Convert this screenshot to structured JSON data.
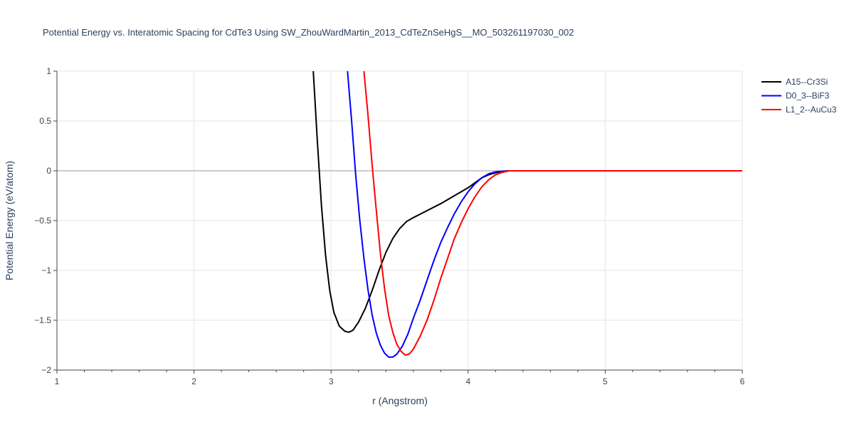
{
  "chart_data": {
    "type": "line",
    "title": "Potential Energy vs. Interatomic Spacing for CdTe3 Using SW_ZhouWardMartin_2013_CdTeZnSeHgS__MO_503261197030_002",
    "xlabel": "r (Angstrom)",
    "ylabel": "Potential Energy (eV/atom)",
    "xlim": [
      1,
      6
    ],
    "ylim": [
      -2,
      1
    ],
    "x_ticks": [
      1,
      2,
      3,
      4,
      5,
      6
    ],
    "x_tick_labels": [
      "1",
      "2",
      "3",
      "4",
      "5",
      "6"
    ],
    "y_ticks": [
      1,
      0.5,
      0,
      -0.5,
      -1,
      -1.5,
      -2
    ],
    "y_tick_labels": [
      "1",
      "0.5",
      "0",
      "−0.5",
      "−1",
      "−1.5",
      "−2"
    ],
    "grid": true,
    "legend_position": "top-right",
    "series": [
      {
        "name": "A15--Cr3Si",
        "color": "#000000",
        "points": [
          [
            2.87,
            1.0
          ],
          [
            2.9,
            0.3
          ],
          [
            2.93,
            -0.35
          ],
          [
            2.96,
            -0.85
          ],
          [
            2.99,
            -1.2
          ],
          [
            3.02,
            -1.42
          ],
          [
            3.06,
            -1.56
          ],
          [
            3.1,
            -1.61
          ],
          [
            3.13,
            -1.62
          ],
          [
            3.16,
            -1.6
          ],
          [
            3.2,
            -1.52
          ],
          [
            3.25,
            -1.38
          ],
          [
            3.3,
            -1.2
          ],
          [
            3.35,
            -1.0
          ],
          [
            3.4,
            -0.82
          ],
          [
            3.45,
            -0.68
          ],
          [
            3.5,
            -0.58
          ],
          [
            3.55,
            -0.51
          ],
          [
            3.6,
            -0.47
          ],
          [
            3.7,
            -0.4
          ],
          [
            3.8,
            -0.33
          ],
          [
            3.9,
            -0.25
          ],
          [
            4.0,
            -0.17
          ],
          [
            4.05,
            -0.12
          ],
          [
            4.1,
            -0.07
          ],
          [
            4.15,
            -0.04
          ],
          [
            4.2,
            -0.02
          ],
          [
            4.25,
            -0.005
          ],
          [
            4.3,
            0.0
          ],
          [
            4.5,
            0.0
          ],
          [
            5.0,
            0.0
          ],
          [
            5.5,
            0.0
          ],
          [
            6.0,
            0.0
          ]
        ]
      },
      {
        "name": "D0_3--BiF3",
        "color": "#0000ff",
        "points": [
          [
            3.12,
            1.0
          ],
          [
            3.15,
            0.5
          ],
          [
            3.18,
            -0.05
          ],
          [
            3.21,
            -0.5
          ],
          [
            3.24,
            -0.88
          ],
          [
            3.27,
            -1.2
          ],
          [
            3.3,
            -1.45
          ],
          [
            3.33,
            -1.63
          ],
          [
            3.36,
            -1.75
          ],
          [
            3.39,
            -1.83
          ],
          [
            3.42,
            -1.87
          ],
          [
            3.45,
            -1.87
          ],
          [
            3.48,
            -1.84
          ],
          [
            3.52,
            -1.76
          ],
          [
            3.56,
            -1.64
          ],
          [
            3.6,
            -1.48
          ],
          [
            3.65,
            -1.3
          ],
          [
            3.7,
            -1.1
          ],
          [
            3.75,
            -0.9
          ],
          [
            3.8,
            -0.72
          ],
          [
            3.85,
            -0.57
          ],
          [
            3.9,
            -0.43
          ],
          [
            3.95,
            -0.31
          ],
          [
            4.0,
            -0.21
          ],
          [
            4.05,
            -0.13
          ],
          [
            4.1,
            -0.07
          ],
          [
            4.15,
            -0.03
          ],
          [
            4.2,
            -0.01
          ],
          [
            4.3,
            0.0
          ],
          [
            4.5,
            0.0
          ],
          [
            5.0,
            0.0
          ],
          [
            5.5,
            0.0
          ],
          [
            6.0,
            0.0
          ]
        ]
      },
      {
        "name": "L1_2--AuCu3",
        "color": "#ff0000",
        "points": [
          [
            3.24,
            1.0
          ],
          [
            3.27,
            0.55
          ],
          [
            3.3,
            0.05
          ],
          [
            3.33,
            -0.4
          ],
          [
            3.36,
            -0.83
          ],
          [
            3.39,
            -1.18
          ],
          [
            3.42,
            -1.45
          ],
          [
            3.45,
            -1.62
          ],
          [
            3.48,
            -1.74
          ],
          [
            3.51,
            -1.81
          ],
          [
            3.54,
            -1.85
          ],
          [
            3.57,
            -1.84
          ],
          [
            3.6,
            -1.79
          ],
          [
            3.65,
            -1.66
          ],
          [
            3.7,
            -1.5
          ],
          [
            3.75,
            -1.3
          ],
          [
            3.8,
            -1.08
          ],
          [
            3.85,
            -0.88
          ],
          [
            3.9,
            -0.68
          ],
          [
            3.95,
            -0.52
          ],
          [
            4.0,
            -0.38
          ],
          [
            4.05,
            -0.26
          ],
          [
            4.1,
            -0.16
          ],
          [
            4.15,
            -0.09
          ],
          [
            4.2,
            -0.04
          ],
          [
            4.25,
            -0.015
          ],
          [
            4.3,
            0.0
          ],
          [
            4.5,
            0.0
          ],
          [
            5.0,
            0.0
          ],
          [
            5.5,
            0.0
          ],
          [
            6.0,
            0.0
          ]
        ]
      }
    ]
  }
}
